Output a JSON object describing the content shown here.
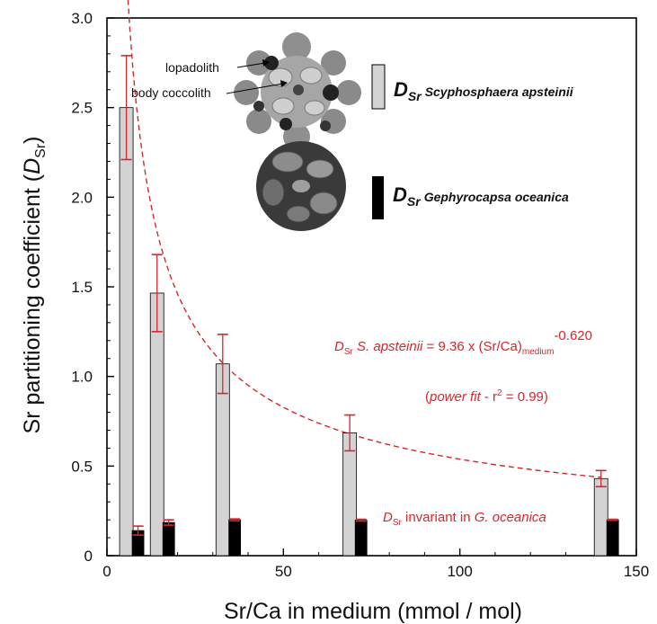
{
  "chart_data": {
    "type": "bar",
    "xlabel": "Sr/Ca in medium (mmol / mol)",
    "ylabel": {
      "main": "Sr partitioning coefficient (",
      "D": "D",
      "sub": "Sr",
      "close": ")"
    },
    "xlim": [
      0,
      150
    ],
    "ylim": [
      0,
      3.0
    ],
    "x_ticks": [
      0,
      50,
      100,
      150
    ],
    "x_tick_labels": [
      "0",
      "50",
      "100",
      "150"
    ],
    "y_ticks": [
      0,
      0.5,
      1.0,
      1.5,
      2.0,
      2.5,
      3.0
    ],
    "y_tick_labels": [
      "0",
      "0.5",
      "1.0",
      "1.5",
      "2.0",
      "2.5",
      "3.0"
    ],
    "grid": false,
    "series": [
      {
        "name": "Scyphosphaera apsteinii",
        "color": "#d3d3d3",
        "points": [
          {
            "x": 5.5,
            "y": 2.5,
            "err": 0.29
          },
          {
            "x": 14.2,
            "y": 1.465,
            "err": 0.215
          },
          {
            "x": 32.8,
            "y": 1.07,
            "err": 0.165
          },
          {
            "x": 68.8,
            "y": 0.685,
            "err": 0.1
          },
          {
            "x": 140.0,
            "y": 0.43,
            "err": 0.045
          }
        ]
      },
      {
        "name": "Gephyrocapsa oceanica",
        "color": "#000000",
        "points": [
          {
            "x": 8.8,
            "y": 0.14,
            "err": 0.025
          },
          {
            "x": 17.5,
            "y": 0.185,
            "err": 0.015
          },
          {
            "x": 36.2,
            "y": 0.2,
            "err": 0.005
          },
          {
            "x": 72.0,
            "y": 0.198,
            "err": 0.005
          },
          {
            "x": 143.3,
            "y": 0.2,
            "err": 0.003
          }
        ]
      }
    ],
    "fit": {
      "a": 9.36,
      "b": -0.62,
      "x_from": 5.5,
      "x_to": 140.0
    },
    "annotations": {
      "equation": {
        "D": "D",
        "sub": "Sr",
        "species": " S. apsteinii",
        "middle": " = 9.36 x (Sr/Ca)",
        "sub2": "medium",
        "exponent": "-0.620"
      },
      "powerfit": {
        "open": "(",
        "label": "power fit",
        "rest": " - r",
        "sup": "2",
        "tail": "  = 0.99)"
      },
      "invariant": {
        "D": "D",
        "sub": "Sr",
        "text": " invariant in ",
        "species": "G. oceanica"
      }
    },
    "legend": {
      "placement": "top-right",
      "items": [
        {
          "D": "D",
          "sub": "Sr",
          "species": "Scyphosphaera apsteinii",
          "color": "#d3d3d3"
        },
        {
          "D": "D",
          "sub": "Sr",
          "species": "Gephyrocapsa oceanica",
          "color": "#000000"
        }
      ]
    },
    "coccolith_labels": {
      "lopadolith": "lopadolith",
      "body": "body coccolith"
    },
    "colors": {
      "fit": "#d6262b",
      "error": "#d6262b",
      "text_red": "#d6262b"
    }
  }
}
